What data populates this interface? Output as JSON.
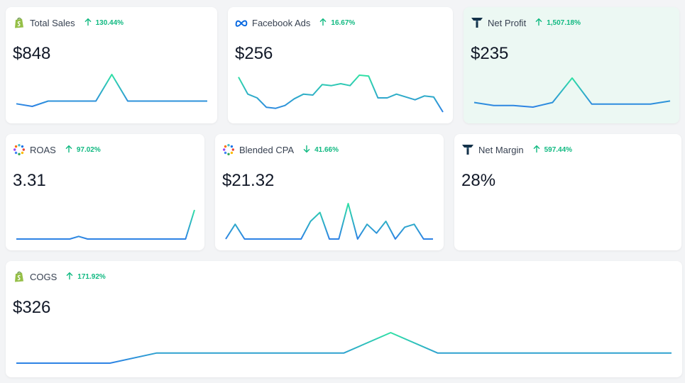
{
  "cards": [
    {
      "label": "Total Sales",
      "delta": "130.44%",
      "direction": "up",
      "value": "$848",
      "icon": "shopify-icon",
      "spark": [
        2,
        1,
        3,
        3,
        3,
        3,
        13,
        3,
        3,
        3,
        3,
        3,
        3
      ]
    },
    {
      "label": "Facebook Ads",
      "delta": "16.67%",
      "direction": "up",
      "value": "$256",
      "icon": "meta-icon",
      "spark": [
        40,
        22,
        18,
        8,
        7,
        10,
        17,
        22,
        21,
        32,
        31,
        33,
        31,
        42,
        41,
        18,
        18,
        22,
        19,
        16,
        20,
        19,
        3
      ]
    },
    {
      "label": "Net Profit",
      "delta": "1,507.18%",
      "direction": "up",
      "value": "$235",
      "icon": "triple-whale-icon",
      "spark": [
        4,
        2,
        2,
        1,
        4,
        20,
        3,
        3,
        3,
        3,
        5
      ]
    },
    {
      "label": "ROAS",
      "delta": "97.02%",
      "direction": "up",
      "value": "3.31",
      "icon": "pixel-dots-icon",
      "spark": [
        0,
        0,
        0,
        0,
        0,
        0,
        0,
        1,
        0,
        0,
        0,
        0,
        0,
        0,
        0,
        0,
        0,
        0,
        0,
        0,
        11
      ]
    },
    {
      "label": "Blended CPA",
      "delta": "41.66%",
      "direction": "down",
      "value": "$21.32",
      "icon": "pixel-dots-icon",
      "spark": [
        0,
        5,
        0,
        0,
        0,
        0,
        0,
        0,
        0,
        6,
        9,
        0,
        0,
        12,
        0,
        5,
        2,
        6,
        0,
        4,
        5,
        0,
        0
      ]
    },
    {
      "label": "Net Margin",
      "delta": "597.44%",
      "direction": "up",
      "value": "28%",
      "icon": "triple-whale-icon",
      "spark": []
    },
    {
      "label": "COGS",
      "delta": "171.92%",
      "direction": "up",
      "value": "$326",
      "icon": "shopify-icon",
      "spark": [
        0,
        0,
        0,
        2,
        2,
        2,
        2,
        2,
        6,
        2,
        2,
        2,
        2,
        2,
        2
      ]
    }
  ],
  "colors": {
    "accent_start": "#2d82e5",
    "accent_end": "#2fe1a4",
    "up": "#10b981",
    "down": "#10b981"
  }
}
